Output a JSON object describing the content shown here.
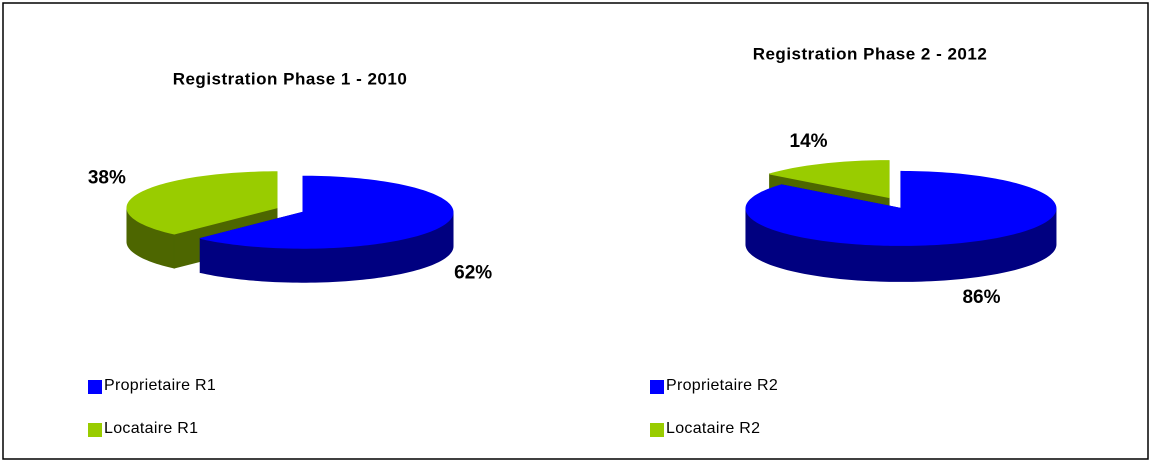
{
  "chart_data": [
    {
      "type": "pie",
      "title": "Registration Phase 1 - 2010",
      "categories": [
        "Proprietaire R1",
        "Locataire R1"
      ],
      "values": [
        62,
        38
      ],
      "value_labels": [
        "62%",
        "38%"
      ],
      "colors": [
        "#0000ff",
        "#99cc00"
      ],
      "legend": "bottom"
    },
    {
      "type": "pie",
      "title": "Registration Phase 2 - 2012",
      "categories": [
        "Proprietaire R2",
        "Locataire R2"
      ],
      "values": [
        86,
        14
      ],
      "value_labels": [
        "86%",
        "14%"
      ],
      "colors": [
        "#0000ff",
        "#99cc00"
      ],
      "legend": "bottom"
    }
  ]
}
